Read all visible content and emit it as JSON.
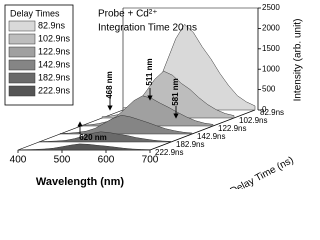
{
  "chart_data": {
    "type": "waterfall",
    "title": "Probe + Cd²⁺",
    "subtitle": "Integration Time 20 ns",
    "legend_title": "Delay Times",
    "x_label": "Wavelength (nm)",
    "y_label": "Intensity (arb. unit)",
    "z_label": "Delay Time (ns)",
    "x": [
      400,
      420,
      440,
      460,
      480,
      500,
      520,
      540,
      560,
      580,
      600,
      620,
      640,
      660,
      680,
      700
    ],
    "xlim": [
      400,
      700
    ],
    "xticks": [
      400,
      500,
      600,
      700
    ],
    "ylim": [
      0,
      2500
    ],
    "yticks": [
      0,
      500,
      1000,
      1500,
      2000,
      2500
    ],
    "series": [
      {
        "name": "82.9ns",
        "color": "#d9d9d9",
        "values": [
          50,
          80,
          150,
          300,
          650,
          1200,
          1750,
          2100,
          1900,
          1550,
          1250,
          900,
          600,
          350,
          200,
          100
        ]
      },
      {
        "name": "102.9ns",
        "color": "#bdbdbd",
        "values": [
          30,
          50,
          90,
          170,
          360,
          650,
          950,
          1150,
          1050,
          850,
          700,
          500,
          330,
          200,
          110,
          60
        ]
      },
      {
        "name": "122.9ns",
        "color": "#a0a0a0",
        "values": [
          20,
          30,
          60,
          110,
          230,
          420,
          620,
          740,
          680,
          560,
          450,
          330,
          220,
          130,
          70,
          40
        ]
      },
      {
        "name": "142.9ns",
        "color": "#858585",
        "values": [
          15,
          20,
          40,
          70,
          140,
          260,
          380,
          460,
          420,
          350,
          280,
          200,
          130,
          80,
          45,
          25
        ]
      },
      {
        "name": "182.9ns",
        "color": "#6a6a6a",
        "values": [
          10,
          15,
          25,
          40,
          80,
          140,
          210,
          250,
          230,
          190,
          160,
          110,
          75,
          45,
          25,
          15
        ]
      },
      {
        "name": "222.9ns",
        "color": "#555555",
        "values": [
          5,
          10,
          15,
          25,
          45,
          80,
          120,
          150,
          140,
          115,
          95,
          70,
          45,
          25,
          15,
          10
        ]
      }
    ],
    "annotations": [
      "468 nm",
      "511 nm",
      "581 nm",
      "620 nm"
    ]
  }
}
